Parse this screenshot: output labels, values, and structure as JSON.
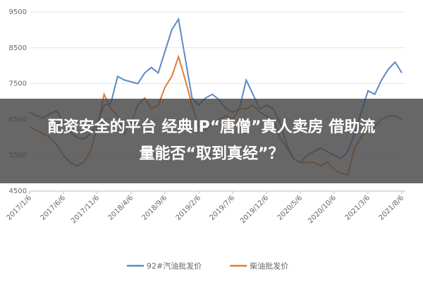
{
  "chart_data": {
    "type": "line",
    "categories": [
      "2017/1/6",
      null,
      null,
      null,
      null,
      "2017/6/6",
      null,
      null,
      null,
      null,
      "2017/11/6",
      null,
      null,
      null,
      null,
      "2018/4/6",
      null,
      null,
      null,
      null,
      "2018/9/6",
      null,
      null,
      null,
      null,
      "2019/2/6",
      null,
      null,
      null,
      null,
      "2019/7/6",
      null,
      null,
      null,
      null,
      "2019/12/6",
      null,
      null,
      null,
      null,
      "2020/5/6",
      null,
      null,
      null,
      null,
      "2020/10/6",
      null,
      null,
      null,
      null,
      "2021/3/6",
      null,
      null,
      null,
      null,
      "2021/8/6"
    ],
    "series": [
      {
        "name": "92#汽油批发价",
        "color": "#5b8ac6",
        "values": [
          6700,
          6600,
          6550,
          6650,
          6750,
          6400,
          6150,
          6000,
          5950,
          6100,
          6400,
          6900,
          6950,
          7700,
          7600,
          7550,
          7500,
          7800,
          7950,
          7800,
          8400,
          9000,
          9300,
          8200,
          7100,
          6900,
          7100,
          7200,
          7050,
          6800,
          6700,
          6800,
          7600,
          7200,
          6800,
          6900,
          6800,
          6400,
          5800,
          5400,
          5300,
          5500,
          5600,
          5700,
          5600,
          5500,
          5400,
          5600,
          6100,
          6700,
          7300,
          7200,
          7600,
          7900,
          8100,
          7800
        ]
      },
      {
        "name": "柴油批发价",
        "color": "#e07b39",
        "values": [
          6300,
          6200,
          6100,
          6000,
          5800,
          5500,
          5300,
          5200,
          5300,
          5600,
          6300,
          7200,
          6800,
          6600,
          6100,
          6400,
          6900,
          7100,
          6800,
          6900,
          7400,
          7700,
          8250,
          7600,
          6900,
          6300,
          6200,
          6400,
          6500,
          6600,
          6500,
          6800,
          6800,
          6900,
          6700,
          6600,
          6500,
          6000,
          5700,
          5400,
          5300,
          5300,
          5300,
          5200,
          5300,
          5100,
          5000,
          4950,
          5700,
          6000,
          6200,
          6300,
          6500,
          6600,
          6600,
          6500
        ]
      }
    ],
    "ylim": [
      4500,
      9500
    ],
    "yticks": [
      4500,
      5500,
      6500,
      7500,
      8500,
      9500
    ],
    "grid": true,
    "legend": "bottom"
  },
  "overlay": {
    "lines": [
      "配资安全的平台  经典IP“唐僧”真人卖房 借助流",
      "量能否“取到真经”？"
    ]
  }
}
